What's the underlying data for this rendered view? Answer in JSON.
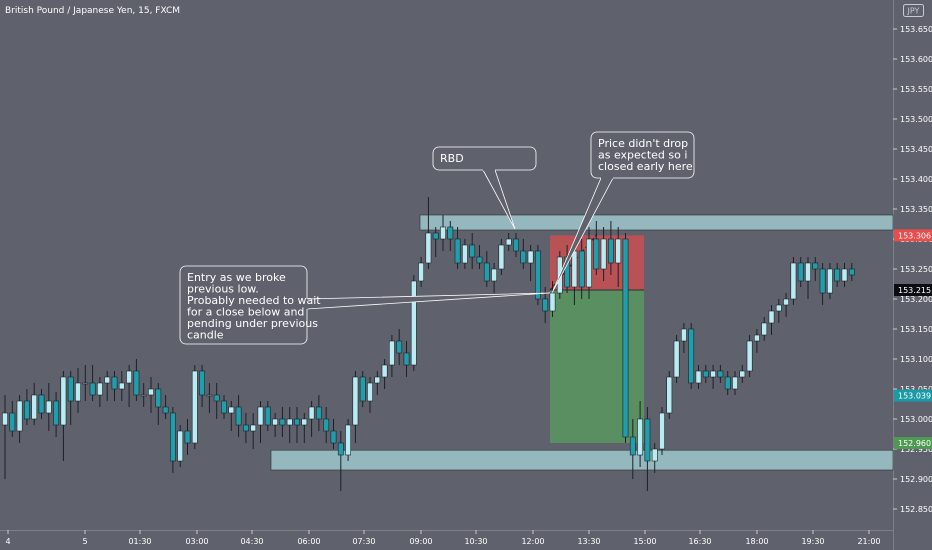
{
  "title": "British Pound / Japanese Yen, 15, FXCM",
  "currency_label": "JPY",
  "colors": {
    "background": "#5f626c",
    "bull_body": "#b9ecf2",
    "bear_body": "#1f9eab",
    "wick": "#1e2028",
    "zone": "#a7d4da",
    "stop": "#ea4a4a",
    "target": "#58a35e",
    "tag_red": "#e84c4c",
    "tag_dark": "#0b0d12",
    "tag_teal": "#1a9aa7",
    "tag_green": "#4d9a52"
  },
  "chart_data": {
    "type": "candlestick",
    "symbol": "British Pound / Japanese Yen",
    "timeframe": "15",
    "source": "FXCM",
    "ylim": [
      152.835,
      153.685
    ],
    "y_ticks": [
      "153.650",
      "153.600",
      "153.550",
      "153.500",
      "153.450",
      "153.400",
      "153.350",
      "153.300",
      "153.250",
      "153.200",
      "153.150",
      "153.100",
      "153.050",
      "153.000",
      "152.950",
      "152.900",
      "152.850"
    ],
    "x_ticks": [
      "4",
      "5",
      "01:30",
      "03:00",
      "04:30",
      "06:00",
      "07:30",
      "09:00",
      "10:30",
      "12:00",
      "13:30",
      "15:00",
      "16:30",
      "18:00",
      "19:30",
      "21:00"
    ],
    "candles": [
      [
        152.99,
        153.04,
        152.9,
        153.01
      ],
      [
        153.01,
        153.03,
        152.97,
        152.98
      ],
      [
        152.98,
        153.04,
        152.96,
        153.03
      ],
      [
        153.03,
        153.05,
        152.99,
        153.0
      ],
      [
        153.0,
        153.06,
        152.99,
        153.04
      ],
      [
        153.04,
        153.05,
        153.0,
        153.01
      ],
      [
        153.01,
        153.06,
        152.98,
        153.03
      ],
      [
        153.03,
        153.045,
        152.97,
        152.99
      ],
      [
        152.99,
        153.08,
        152.93,
        153.07
      ],
      [
        153.07,
        153.08,
        152.99,
        153.03
      ],
      [
        153.03,
        153.085,
        153.01,
        153.06
      ],
      [
        153.06,
        153.09,
        153.03,
        153.06
      ],
      [
        153.06,
        153.09,
        153.03,
        153.04
      ],
      [
        153.04,
        153.07,
        153.02,
        153.06
      ],
      [
        153.06,
        153.08,
        153.03,
        153.07
      ],
      [
        153.07,
        153.08,
        153.03,
        153.05
      ],
      [
        153.05,
        153.08,
        153.03,
        153.06
      ],
      [
        153.06,
        153.09,
        153.02,
        153.08
      ],
      [
        153.08,
        153.1,
        153.03,
        153.04
      ],
      [
        153.04,
        153.06,
        153.02,
        153.04
      ],
      [
        153.04,
        153.07,
        153.01,
        153.05
      ],
      [
        153.05,
        153.06,
        152.99,
        153.02
      ],
      [
        153.02,
        153.04,
        153.0,
        153.01
      ],
      [
        153.01,
        153.02,
        152.91,
        152.93
      ],
      [
        152.93,
        152.99,
        152.92,
        152.98
      ],
      [
        152.98,
        153.0,
        152.94,
        152.96
      ],
      [
        152.96,
        153.09,
        152.95,
        153.08
      ],
      [
        153.08,
        153.09,
        153.02,
        153.04
      ],
      [
        153.04,
        153.06,
        153.01,
        153.04
      ],
      [
        153.04,
        153.06,
        153.0,
        153.03
      ],
      [
        153.03,
        153.04,
        153.0,
        153.01
      ],
      [
        153.01,
        153.03,
        152.98,
        153.02
      ],
      [
        153.02,
        153.04,
        152.97,
        152.99
      ],
      [
        152.99,
        153.01,
        152.96,
        152.98
      ],
      [
        152.98,
        153.01,
        152.95,
        152.99
      ],
      [
        152.99,
        153.03,
        152.96,
        153.02
      ],
      [
        153.02,
        153.03,
        152.98,
        152.99
      ],
      [
        152.99,
        153.01,
        152.97,
        153.0
      ],
      [
        153.0,
        153.02,
        152.97,
        152.99
      ],
      [
        152.99,
        153.02,
        152.96,
        153.0
      ],
      [
        153.0,
        153.02,
        152.96,
        152.99
      ],
      [
        152.99,
        153.01,
        152.96,
        153.0
      ],
      [
        153.0,
        153.03,
        152.97,
        153.02
      ],
      [
        153.02,
        153.04,
        152.98,
        153.0
      ],
      [
        153.0,
        153.02,
        152.96,
        152.98
      ],
      [
        152.98,
        153.0,
        152.95,
        152.96
      ],
      [
        152.96,
        152.98,
        152.88,
        152.94
      ],
      [
        152.94,
        153.0,
        152.93,
        152.99
      ],
      [
        152.99,
        153.08,
        152.96,
        153.07
      ],
      [
        153.07,
        153.08,
        153.02,
        153.03
      ],
      [
        153.03,
        153.07,
        153.01,
        153.06
      ],
      [
        153.06,
        153.08,
        153.04,
        153.07
      ],
      [
        153.07,
        153.1,
        153.05,
        153.09
      ],
      [
        153.09,
        153.14,
        153.07,
        153.13
      ],
      [
        153.13,
        153.15,
        153.09,
        153.11
      ],
      [
        153.11,
        153.13,
        153.07,
        153.09
      ],
      [
        153.09,
        153.24,
        153.08,
        153.23
      ],
      [
        153.23,
        153.27,
        153.22,
        153.26
      ],
      [
        153.26,
        153.37,
        153.25,
        153.31
      ],
      [
        153.31,
        153.32,
        153.27,
        153.3
      ],
      [
        153.3,
        153.34,
        153.28,
        153.32
      ],
      [
        153.32,
        153.33,
        153.28,
        153.3
      ],
      [
        153.3,
        153.32,
        153.25,
        153.26
      ],
      [
        153.26,
        153.3,
        153.25,
        153.29
      ],
      [
        153.29,
        153.31,
        153.25,
        153.27
      ],
      [
        153.27,
        153.29,
        153.25,
        153.26
      ],
      [
        153.26,
        153.28,
        153.22,
        153.23
      ],
      [
        153.23,
        153.26,
        153.21,
        153.25
      ],
      [
        153.25,
        153.3,
        153.24,
        153.29
      ],
      [
        153.29,
        153.31,
        153.28,
        153.3
      ],
      [
        153.3,
        153.31,
        153.27,
        153.28
      ],
      [
        153.28,
        153.3,
        153.25,
        153.26
      ],
      [
        153.26,
        153.29,
        153.23,
        153.28
      ],
      [
        153.28,
        153.29,
        153.19,
        153.2
      ],
      [
        153.2,
        153.22,
        153.16,
        153.18
      ],
      [
        153.18,
        153.23,
        153.17,
        153.21
      ],
      [
        153.21,
        153.28,
        153.2,
        153.27
      ],
      [
        153.27,
        153.29,
        153.21,
        153.22
      ],
      [
        153.22,
        153.29,
        153.19,
        153.28
      ],
      [
        153.28,
        153.3,
        153.2,
        153.22
      ],
      [
        153.22,
        153.32,
        153.2,
        153.3
      ],
      [
        153.3,
        153.33,
        153.24,
        153.25
      ],
      [
        153.25,
        153.32,
        153.23,
        153.3
      ],
      [
        153.3,
        153.33,
        153.24,
        153.26
      ],
      [
        153.26,
        153.32,
        153.22,
        153.3
      ],
      [
        153.3,
        153.31,
        152.96,
        152.97
      ],
      [
        152.97,
        153.0,
        152.9,
        152.94
      ],
      [
        152.94,
        153.03,
        152.92,
        153.0
      ],
      [
        153.0,
        153.02,
        152.88,
        152.93
      ],
      [
        152.93,
        152.96,
        152.91,
        152.95
      ],
      [
        152.95,
        153.02,
        152.94,
        153.01
      ],
      [
        153.01,
        153.08,
        153.0,
        153.07
      ],
      [
        153.07,
        153.14,
        153.06,
        153.13
      ],
      [
        153.13,
        153.16,
        153.11,
        153.15
      ],
      [
        153.15,
        153.16,
        153.05,
        153.06
      ],
      [
        153.06,
        153.09,
        153.05,
        153.08
      ],
      [
        153.08,
        153.09,
        153.06,
        153.07
      ],
      [
        153.07,
        153.09,
        153.05,
        153.08
      ],
      [
        153.08,
        153.09,
        153.06,
        153.07
      ],
      [
        153.07,
        153.08,
        153.04,
        153.05
      ],
      [
        153.05,
        153.08,
        153.04,
        153.07
      ],
      [
        153.07,
        153.09,
        153.06,
        153.08
      ],
      [
        153.08,
        153.14,
        153.07,
        153.13
      ],
      [
        153.13,
        153.15,
        153.11,
        153.14
      ],
      [
        153.14,
        153.17,
        153.13,
        153.16
      ],
      [
        153.16,
        153.19,
        153.14,
        153.18
      ],
      [
        153.18,
        153.2,
        153.16,
        153.19
      ],
      [
        153.19,
        153.21,
        153.17,
        153.2
      ],
      [
        153.2,
        153.27,
        153.19,
        153.26
      ],
      [
        153.26,
        153.27,
        153.22,
        153.23
      ],
      [
        153.23,
        153.27,
        153.2,
        153.26
      ],
      [
        153.26,
        153.27,
        153.23,
        153.25
      ],
      [
        153.25,
        153.26,
        153.19,
        153.21
      ],
      [
        153.21,
        153.26,
        153.2,
        153.25
      ],
      [
        153.25,
        153.26,
        153.22,
        153.23
      ],
      [
        153.23,
        153.26,
        153.22,
        153.25
      ],
      [
        153.25,
        153.26,
        153.23,
        153.24
      ]
    ],
    "zones": [
      {
        "type": "supply",
        "from": 153.315,
        "to": 153.34
      },
      {
        "type": "demand",
        "from": 152.915,
        "to": 152.948
      }
    ],
    "position": {
      "type": "short",
      "entry": 153.215,
      "stop": 153.306,
      "target": 152.96
    },
    "price_tags": [
      {
        "value": 153.306,
        "text": "153.306",
        "style": "tag_red"
      },
      {
        "value": 153.215,
        "text": "153.215",
        "style": "tag_dark"
      },
      {
        "value": 153.039,
        "text": "153.039",
        "style": "tag_teal"
      },
      {
        "value": 152.96,
        "text": "152.960",
        "style": "tag_green"
      }
    ],
    "annotations": [
      {
        "name": "rbd",
        "lines": [
          "RBD"
        ]
      },
      {
        "name": "price-didnt-drop",
        "lines": [
          "Price didn't drop",
          "as expected so i",
          "closed early here"
        ]
      },
      {
        "name": "entry-note",
        "lines": [
          "Entry as we broke",
          "previous low.",
          "Probably needed to wait",
          "for a close below and",
          "pending under previous",
          "candle"
        ]
      }
    ]
  }
}
